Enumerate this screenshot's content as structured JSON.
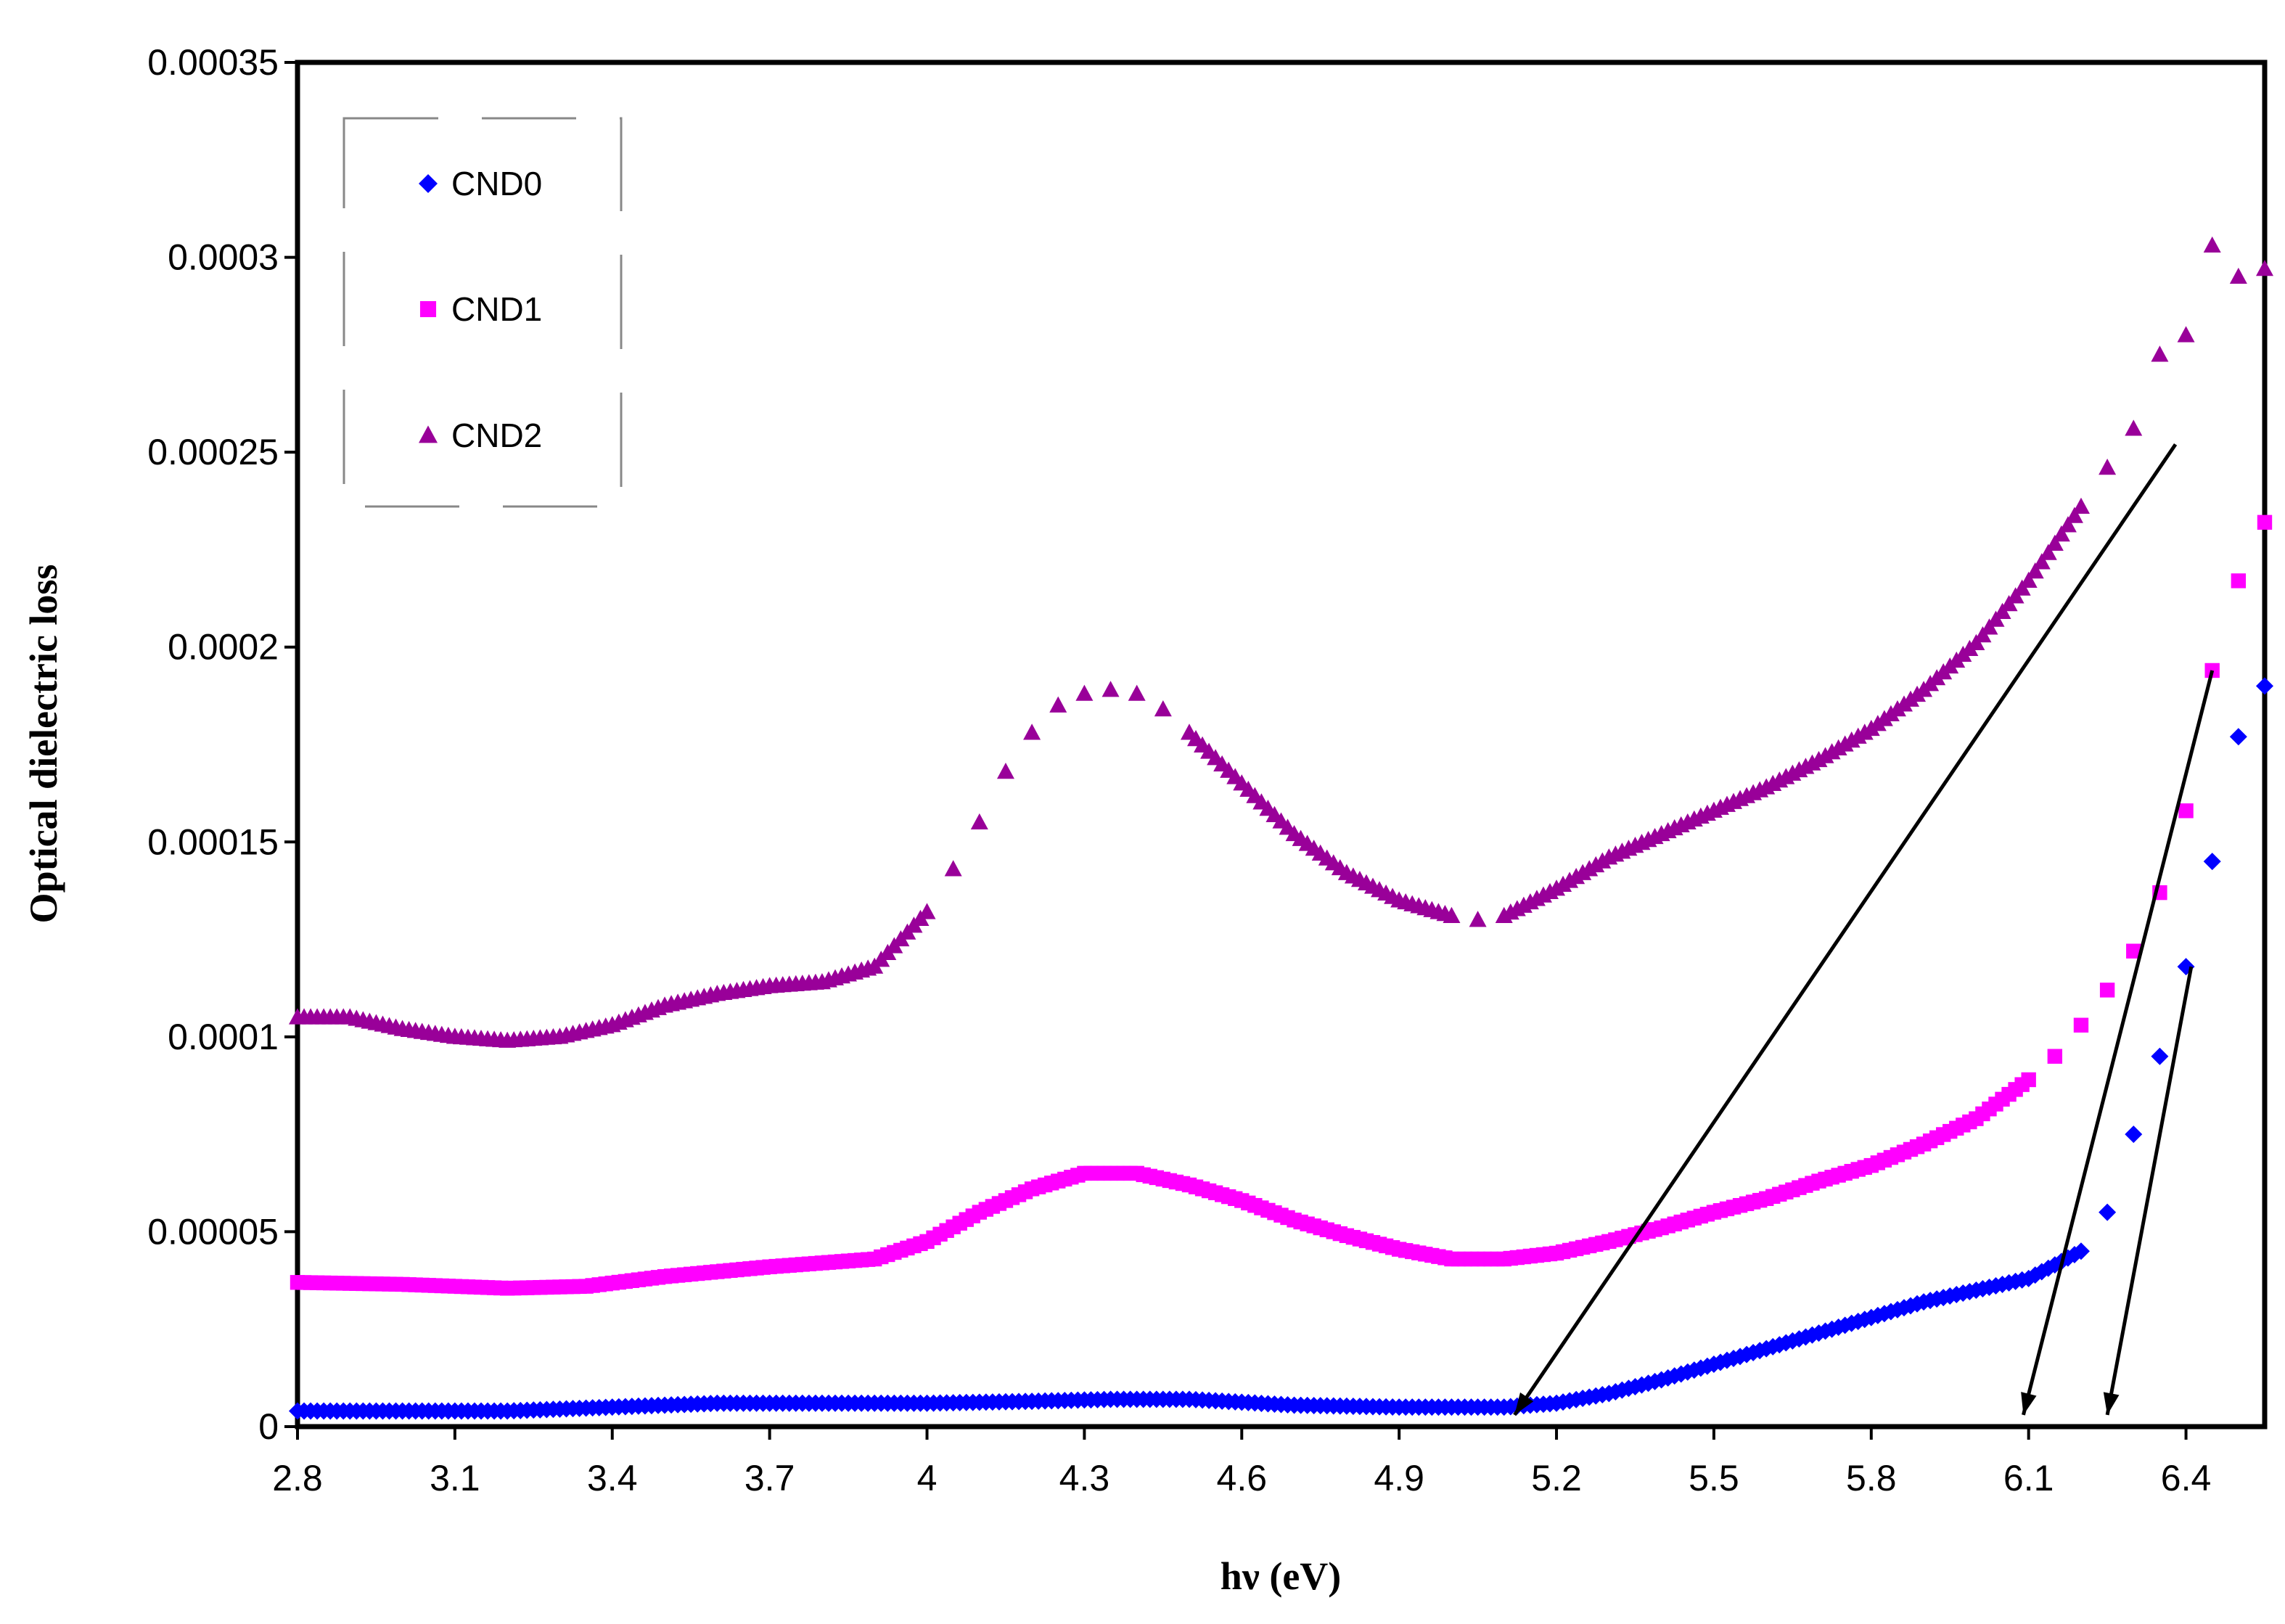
{
  "chart_data": {
    "type": "scatter",
    "title": "",
    "xlabel": "hν (eV)",
    "ylabel": "Optical dielectric loss",
    "xlim": [
      2.8,
      6.55
    ],
    "ylim": [
      0,
      0.00035
    ],
    "grid": false,
    "legend_position": "top-left",
    "x_ticks": [
      {
        "value": 2.8,
        "label": "2.8"
      },
      {
        "value": 3.1,
        "label": "3.1"
      },
      {
        "value": 3.4,
        "label": "3.4"
      },
      {
        "value": 3.7,
        "label": "3.7"
      },
      {
        "value": 4.0,
        "label": "4"
      },
      {
        "value": 4.3,
        "label": "4.3"
      },
      {
        "value": 4.6,
        "label": "4.6"
      },
      {
        "value": 4.9,
        "label": "4.9"
      },
      {
        "value": 5.2,
        "label": "5.2"
      },
      {
        "value": 5.5,
        "label": "5.5"
      },
      {
        "value": 5.8,
        "label": "5.8"
      },
      {
        "value": 6.1,
        "label": "6.1"
      },
      {
        "value": 6.4,
        "label": "6.4"
      }
    ],
    "y_ticks": [
      {
        "value": 0,
        "label": "0"
      },
      {
        "value": 5e-05,
        "label": "0.00005"
      },
      {
        "value": 0.0001,
        "label": "0.0001"
      },
      {
        "value": 0.00015,
        "label": "0.00015"
      },
      {
        "value": 0.0002,
        "label": "0.0002"
      },
      {
        "value": 0.00025,
        "label": "0.00025"
      },
      {
        "value": 0.0003,
        "label": "0.0003"
      },
      {
        "value": 0.00035,
        "label": "0.00035"
      }
    ],
    "series": [
      {
        "name": "CND0",
        "marker": "diamond",
        "color": "#0000ff",
        "x": [
          2.8,
          3.0,
          3.2,
          3.4,
          3.6,
          3.8,
          4.0,
          4.2,
          4.35,
          4.5,
          4.7,
          4.9,
          5.1,
          5.2,
          5.3,
          5.4,
          5.5,
          5.6,
          5.7,
          5.8,
          5.9,
          6.0,
          6.1,
          6.2,
          6.25,
          6.3,
          6.35,
          6.4,
          6.45,
          6.5,
          6.55
        ],
        "values": [
          4e-06,
          4e-06,
          4e-06,
          5e-06,
          6e-06,
          6e-06,
          6e-06,
          6.5e-06,
          7e-06,
          7e-06,
          5.5e-06,
          5e-06,
          5e-06,
          6e-06,
          8.5e-06,
          1.2e-05,
          1.6e-05,
          2e-05,
          2.4e-05,
          2.8e-05,
          3.2e-05,
          3.5e-05,
          3.8e-05,
          4.5e-05,
          5.5e-05,
          7.5e-05,
          9.5e-05,
          0.000118,
          0.000145,
          0.000177,
          0.00019
        ]
      },
      {
        "name": "CND1",
        "marker": "square",
        "color": "#ff00ff",
        "x": [
          2.8,
          3.0,
          3.2,
          3.35,
          3.5,
          3.7,
          3.9,
          4.0,
          4.1,
          4.2,
          4.3,
          4.4,
          4.5,
          4.6,
          4.7,
          4.8,
          4.9,
          5.0,
          5.1,
          5.2,
          5.3,
          5.4,
          5.5,
          5.6,
          5.7,
          5.8,
          5.9,
          6.0,
          6.1,
          6.15,
          6.2,
          6.25,
          6.3,
          6.35,
          6.4,
          6.45,
          6.5,
          6.55
        ],
        "values": [
          3.7e-05,
          3.65e-05,
          3.55e-05,
          3.6e-05,
          3.85e-05,
          4.1e-05,
          4.3e-05,
          4.75e-05,
          5.5e-05,
          6.1e-05,
          6.5e-05,
          6.5e-05,
          6.2e-05,
          5.8e-05,
          5.3e-05,
          4.9e-05,
          4.55e-05,
          4.3e-05,
          4.3e-05,
          4.45e-05,
          4.75e-05,
          5.1e-05,
          5.5e-05,
          5.85e-05,
          6.3e-05,
          6.7e-05,
          7.25e-05,
          7.9e-05,
          8.9e-05,
          9.5e-05,
          0.000103,
          0.000112,
          0.000122,
          0.000137,
          0.000158,
          0.000194,
          0.000217,
          0.000232
        ]
      },
      {
        "name": "CND2",
        "marker": "triangle",
        "color": "#990099",
        "x": [
          2.8,
          2.9,
          3.0,
          3.1,
          3.2,
          3.3,
          3.4,
          3.5,
          3.6,
          3.7,
          3.8,
          3.9,
          4.0,
          4.05,
          4.1,
          4.15,
          4.2,
          4.25,
          4.3,
          4.35,
          4.4,
          4.45,
          4.5,
          4.6,
          4.7,
          4.8,
          4.9,
          5.0,
          5.05,
          5.1,
          5.2,
          5.3,
          5.4,
          5.5,
          5.6,
          5.7,
          5.8,
          5.9,
          6.0,
          6.1,
          6.2,
          6.25,
          6.3,
          6.35,
          6.4,
          6.45,
          6.5,
          6.55
        ],
        "values": [
          0.000105,
          0.000105,
          0.000102,
          0.0001,
          9.9e-05,
          0.0001,
          0.000103,
          0.000108,
          0.000111,
          0.000113,
          0.000114,
          0.000118,
          0.000132,
          0.000143,
          0.000155,
          0.000168,
          0.000178,
          0.000185,
          0.000188,
          0.000189,
          0.000188,
          0.000184,
          0.000178,
          0.000165,
          0.000152,
          0.000142,
          0.000135,
          0.000131,
          0.00013,
          0.000131,
          0.000138,
          0.000146,
          0.000152,
          0.000158,
          0.000164,
          0.000171,
          0.000179,
          0.000189,
          0.000201,
          0.000217,
          0.000236,
          0.000246,
          0.000256,
          0.000275,
          0.00028,
          0.000303,
          0.000295,
          0.000297
        ]
      }
    ],
    "arrows": [
      {
        "series": "CND2",
        "from": [
          6.38,
          0.000252
        ],
        "to": [
          5.12,
          3e-06
        ]
      },
      {
        "series": "CND1",
        "from": [
          6.45,
          0.000194
        ],
        "to": [
          6.09,
          3e-06
        ]
      },
      {
        "series": "CND0",
        "from": [
          6.41,
          0.000118
        ],
        "to": [
          6.25,
          3e-06
        ]
      }
    ]
  }
}
